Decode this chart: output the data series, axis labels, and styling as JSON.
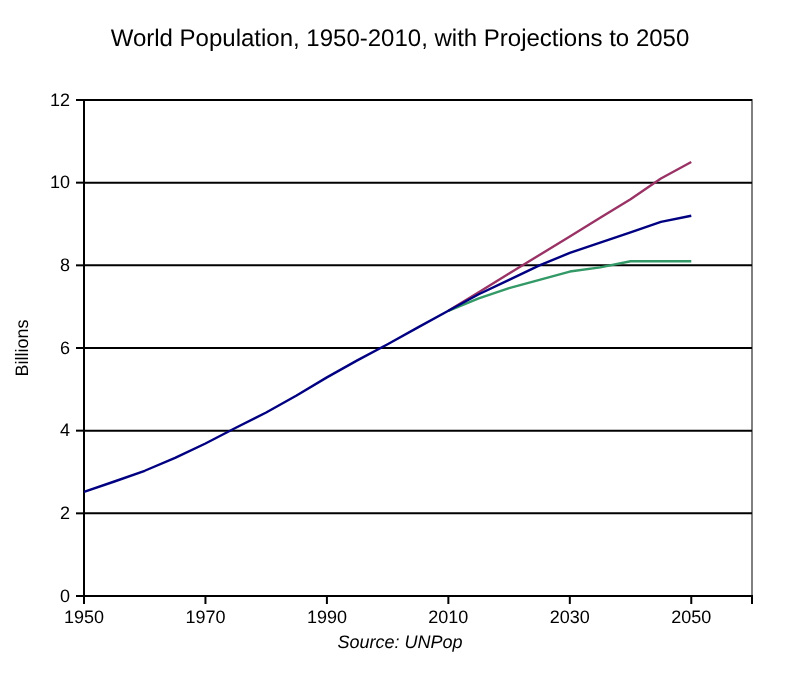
{
  "chart_data": {
    "type": "line",
    "title": "World Population, 1950-2010, with Projections to 2050",
    "ylabel": "Billions",
    "annotations": [
      "Source: UNPop"
    ],
    "xlim": [
      1950,
      2060
    ],
    "xticks": [
      1950,
      1970,
      1990,
      2010,
      2030,
      2050
    ],
    "ylim": [
      0,
      12
    ],
    "yticks": [
      0,
      2,
      4,
      6,
      8,
      10,
      12
    ],
    "grid": "y",
    "marker": "none",
    "line_style": "solid",
    "series": [
      {
        "color": "#993366",
        "x": [
          2010,
          2015,
          2020,
          2025,
          2030,
          2035,
          2040,
          2045,
          2050
        ],
        "values": [
          6.9,
          7.35,
          7.8,
          8.25,
          8.7,
          9.15,
          9.6,
          10.1,
          10.5
        ]
      },
      {
        "color": "#339966",
        "x": [
          2010,
          2015,
          2020,
          2025,
          2030,
          2035,
          2040,
          2045,
          2050
        ],
        "values": [
          6.9,
          7.2,
          7.45,
          7.65,
          7.85,
          7.95,
          8.1,
          8.1,
          8.1
        ]
      },
      {
        "color": "#000080",
        "x": [
          1950,
          1955,
          1960,
          1965,
          1970,
          1975,
          1980,
          1985,
          1990,
          1995,
          2000,
          2005,
          2010,
          2015,
          2020,
          2025,
          2030,
          2035,
          2040,
          2045,
          2050
        ],
        "values": [
          2.52,
          2.77,
          3.03,
          3.34,
          3.69,
          4.07,
          4.44,
          4.85,
          5.29,
          5.7,
          6.09,
          6.5,
          6.9,
          7.3,
          7.65,
          8.0,
          8.3,
          8.55,
          8.8,
          9.05,
          9.2
        ]
      }
    ]
  }
}
